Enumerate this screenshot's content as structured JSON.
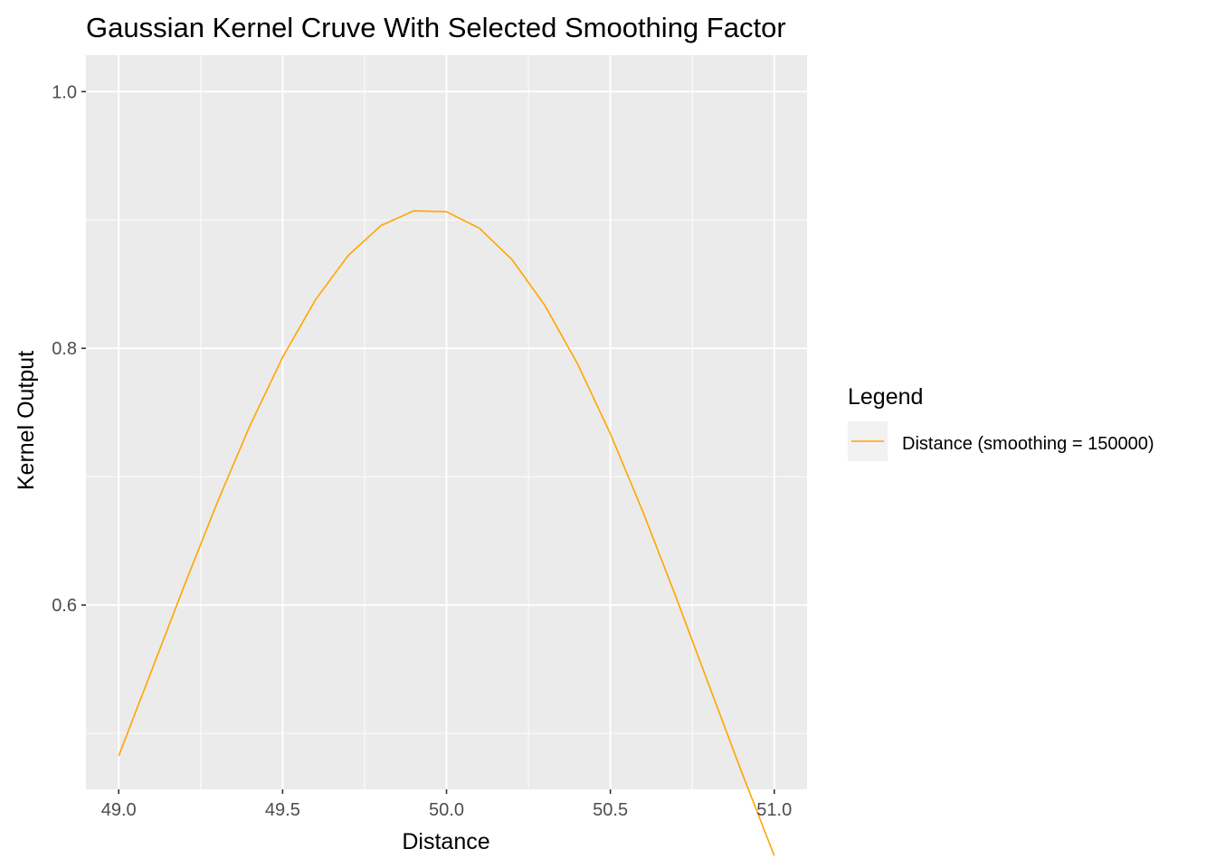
{
  "chart_data": {
    "type": "line",
    "title": "Gaussian Kernel Cruve With Selected Smoothing Factor",
    "xlabel": "Distance",
    "ylabel": "Kernel Output",
    "xlim": [
      48.9,
      51.1
    ],
    "ylim": [
      0.4564,
      1.0284
    ],
    "x_ticks": [
      49.0,
      49.5,
      50.0,
      50.5,
      51.0
    ],
    "x_tick_labels": [
      "49.0",
      "49.5",
      "50.0",
      "50.5",
      "51.0"
    ],
    "y_ticks": [
      0.6,
      0.8,
      1.0
    ],
    "y_tick_labels": [
      "0.6",
      "0.8",
      "1.0"
    ],
    "x_minor_ticks": [
      49.25,
      49.75,
      50.25,
      50.75
    ],
    "y_minor_ticks": [
      0.5,
      0.7,
      0.9
    ],
    "grid": true,
    "panel_background": "#ebebeb",
    "legend": {
      "title": "Legend",
      "position": "right",
      "entries": [
        {
          "label": "Distance (smoothing = 150000)",
          "color": "#ffa500"
        }
      ]
    },
    "series": [
      {
        "name": "Distance (smoothing = 150000)",
        "color": "#ffa500",
        "x": [
          49.0,
          49.1,
          49.2,
          49.3,
          49.4,
          49.5,
          49.6,
          49.7,
          49.8,
          49.9,
          50.0,
          50.1,
          50.2,
          50.3,
          50.4,
          50.5,
          50.6,
          50.7,
          50.8,
          50.9,
          51.0
        ],
        "y": [
          0.4825,
          0.5487,
          0.6151,
          0.6795,
          0.7396,
          0.793,
          0.8377,
          0.8723,
          0.8956,
          0.9071,
          0.9064,
          0.8936,
          0.8691,
          0.8335,
          0.7878,
          0.7334,
          0.6722,
          0.6063,
          0.5381,
          0.4702,
          0.4047
        ]
      }
    ]
  }
}
